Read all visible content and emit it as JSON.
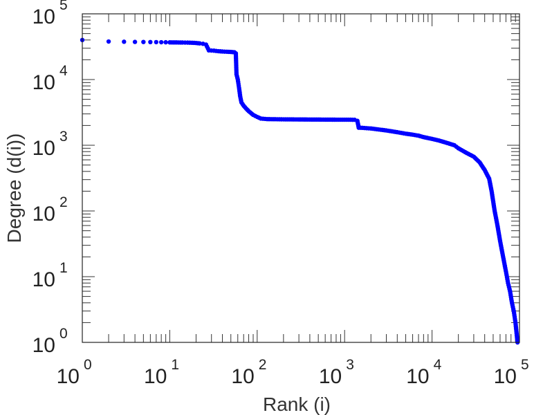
{
  "chart_data": {
    "type": "scatter",
    "x_scale": "log",
    "y_scale": "log",
    "xlabel": "Rank (i)",
    "ylabel": "Degree (d(i))",
    "xlim": [
      1,
      100000
    ],
    "ylim": [
      1,
      100000
    ],
    "x_ticks": [
      {
        "base": "10",
        "exp": "0",
        "value": 1
      },
      {
        "base": "10",
        "exp": "1",
        "value": 10
      },
      {
        "base": "10",
        "exp": "2",
        "value": 100
      },
      {
        "base": "10",
        "exp": "3",
        "value": 1000
      },
      {
        "base": "10",
        "exp": "4",
        "value": 10000
      },
      {
        "base": "10",
        "exp": "5",
        "value": 100000
      }
    ],
    "y_ticks": [
      {
        "base": "10",
        "exp": "0",
        "value": 1
      },
      {
        "base": "10",
        "exp": "1",
        "value": 10
      },
      {
        "base": "10",
        "exp": "2",
        "value": 100
      },
      {
        "base": "10",
        "exp": "3",
        "value": 1000
      },
      {
        "base": "10",
        "exp": "4",
        "value": 10000
      },
      {
        "base": "10",
        "exp": "5",
        "value": 100000
      }
    ],
    "series": [
      {
        "color": "#0000ff",
        "marker": "dot",
        "points": [
          [
            1,
            40000
          ],
          [
            2,
            37900
          ],
          [
            3,
            37600
          ],
          [
            4,
            37400
          ],
          [
            5,
            37300
          ],
          [
            6,
            37200
          ],
          [
            7,
            37100
          ],
          [
            8,
            37000
          ],
          [
            9,
            36900
          ],
          [
            10,
            36800
          ],
          [
            12,
            36700
          ],
          [
            14,
            36600
          ],
          [
            16,
            36500
          ],
          [
            18,
            36300
          ],
          [
            20,
            36000
          ],
          [
            22,
            35500
          ],
          [
            24,
            35000
          ],
          [
            26,
            34000
          ],
          [
            28,
            27800
          ],
          [
            32,
            27500
          ],
          [
            36,
            27000
          ],
          [
            40,
            26700
          ],
          [
            45,
            26500
          ],
          [
            50,
            26300
          ],
          [
            55,
            26000
          ],
          [
            57,
            25000
          ],
          [
            58,
            12000
          ],
          [
            60,
            10000
          ],
          [
            62,
            7500
          ],
          [
            64,
            5500
          ],
          [
            66,
            4500
          ],
          [
            70,
            4000
          ],
          [
            75,
            3600
          ],
          [
            80,
            3300
          ],
          [
            90,
            2900
          ],
          [
            100,
            2700
          ],
          [
            110,
            2550
          ],
          [
            130,
            2500
          ],
          [
            160,
            2490
          ],
          [
            200,
            2480
          ],
          [
            300,
            2470
          ],
          [
            500,
            2460
          ],
          [
            800,
            2450
          ],
          [
            1100,
            2450
          ],
          [
            1300,
            2440
          ],
          [
            1400,
            2350
          ],
          [
            1450,
            1850
          ],
          [
            1600,
            1840
          ],
          [
            2000,
            1800
          ],
          [
            3000,
            1680
          ],
          [
            4000,
            1580
          ],
          [
            5000,
            1500
          ],
          [
            6000,
            1450
          ],
          [
            7000,
            1400
          ],
          [
            8000,
            1330
          ],
          [
            10000,
            1250
          ],
          [
            12000,
            1180
          ],
          [
            15000,
            1080
          ],
          [
            18000,
            1000
          ],
          [
            20000,
            900
          ],
          [
            25000,
            760
          ],
          [
            30000,
            670
          ],
          [
            35000,
            550
          ],
          [
            40000,
            420
          ],
          [
            45000,
            310
          ],
          [
            48000,
            200
          ],
          [
            52000,
            100
          ],
          [
            56000,
            60
          ],
          [
            60000,
            35
          ],
          [
            65000,
            20
          ],
          [
            70000,
            12
          ],
          [
            74000,
            8
          ],
          [
            78000,
            6
          ],
          [
            82000,
            4
          ],
          [
            86000,
            3
          ],
          [
            90000,
            2
          ],
          [
            95000,
            1
          ]
        ]
      }
    ]
  }
}
